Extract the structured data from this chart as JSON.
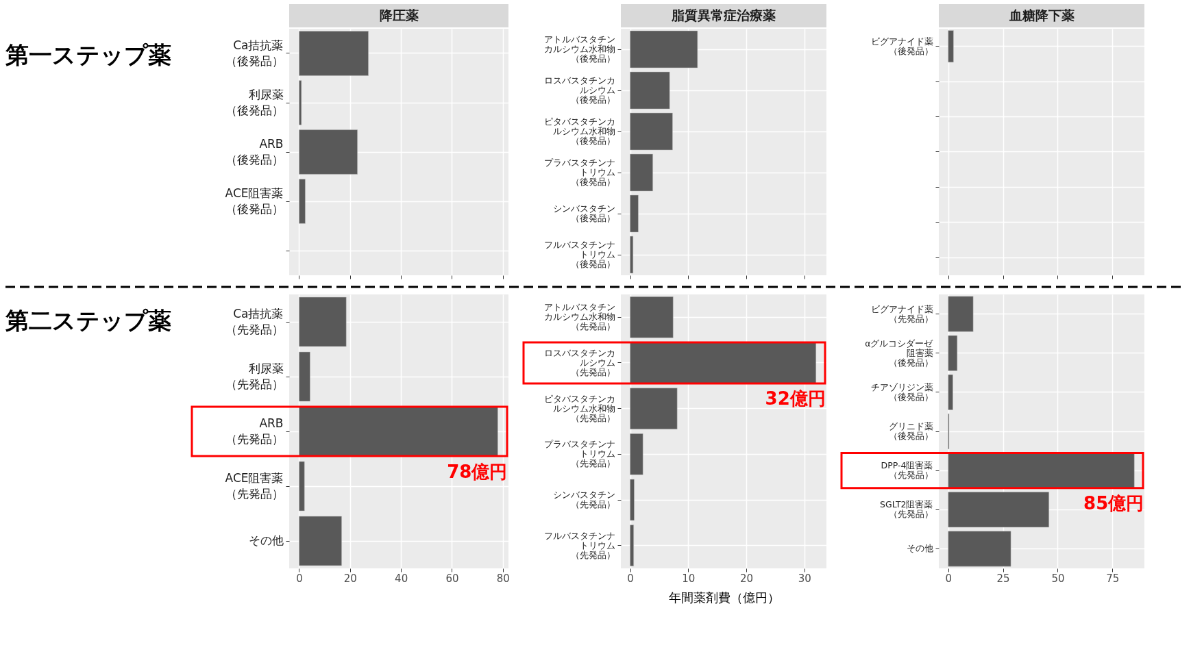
{
  "chart_data": [
    {
      "type": "bar",
      "orientation": "horizontal",
      "title": "降圧薬",
      "categories": [
        "Ca拮抗薬（後発品）",
        "利尿薬（後発品）",
        "ARB（後発品）",
        "ACE阻害薬（後発品）"
      ],
      "values": [
        27.2,
        0.9,
        22.9,
        2.4
      ],
      "color": "#595959",
      "xlim": [
        -3.9,
        82.2
      ],
      "xticks": [
        0,
        20,
        40,
        60,
        80
      ],
      "grid": true,
      "tick_labels": "y",
      "annotations": [
        "第一ステップ薬"
      ]
    },
    {
      "type": "bar",
      "orientation": "horizontal",
      "title": "脂質異常症治療薬",
      "categories": [
        "アトルバスタチンカルシウム水和物（後発品）",
        "ロスバスタチンカルシウム（後発品）",
        "ピタバスタチンカルシウム水和物（後発品）",
        "プラバスタチンナトリウム（後発品）",
        "シンバスタチン（後発品）",
        "フルバスタチンナトリウム（後発品）"
      ],
      "values": [
        11.6,
        6.8,
        7.3,
        3.9,
        1.4,
        0.5
      ],
      "color": "#595959",
      "xlim": [
        -1.6,
        33.8
      ],
      "xticks": [
        0,
        10,
        20,
        30
      ],
      "grid": true,
      "tick_labels": "y"
    },
    {
      "type": "bar",
      "orientation": "horizontal",
      "title": "血糖降下薬",
      "categories": [
        "ビグアナイド薬（後発品）"
      ],
      "values": [
        2.4
      ],
      "color": "#595959",
      "xlim": [
        -4.3,
        89.6
      ],
      "xticks": [
        0,
        25,
        50,
        75
      ],
      "grid": true,
      "tick_labels": "y"
    },
    {
      "type": "bar",
      "orientation": "horizontal",
      "categories": [
        "Ca拮抗薬（先発品）",
        "利尿薬（先発品）",
        "ARB（先発品）",
        "ACE阻害薬（先発品）",
        "その他"
      ],
      "values": [
        18.5,
        4.3,
        78,
        2.1,
        16.7
      ],
      "color": "#595959",
      "xlim": [
        -3.9,
        82.2
      ],
      "xticks": [
        0,
        20,
        40,
        60,
        80
      ],
      "grid": true,
      "annotations": [
        "第二ステップ薬",
        {
          "text": "78億円",
          "x": 78,
          "y": "ARB（先発品）"
        }
      ]
    },
    {
      "type": "bar",
      "orientation": "horizontal",
      "categories": [
        "アトルバスタチンカルシウム水和物（先発品）",
        "ロスバスタチンカルシウム（先発品）",
        "ピタバスタチンカルシウム水和物（先発品）",
        "プラバスタチンナトリウム（先発品）",
        "シンバスタチン（先発品）",
        "フルバスタチンナトリウム（先発品）"
      ],
      "values": [
        7.4,
        32,
        8.1,
        2.2,
        0.7,
        0.6
      ],
      "color": "#595959",
      "xlim": [
        -1.6,
        33.8
      ],
      "xticks": [
        0,
        10,
        20,
        30
      ],
      "grid": true,
      "xlabel": "年間薬剤費（億円）",
      "annotations": [
        {
          "text": "32億円",
          "x": 32,
          "y": "ロスバスタチンカルシウム（先発品）"
        }
      ]
    },
    {
      "type": "bar",
      "orientation": "horizontal",
      "categories": [
        "ビグアナイド薬（先発品）",
        "αグルコシダーゼ阻害薬（後発品）",
        "チアゾリジン薬（後発品）",
        "グリニド薬（後発品）",
        "DPP-4阻害薬（先発品）",
        "SGLT2阻害薬（先発品）",
        "その他"
      ],
      "values": [
        11.4,
        4.1,
        2.1,
        0.4,
        85,
        46.0,
        28.6
      ],
      "color": "#595959",
      "xlim": [
        -4.3,
        89.6
      ],
      "xticks": [
        0,
        25,
        50,
        75
      ],
      "grid": true,
      "annotations": [
        {
          "text": "85億円",
          "x": 85,
          "y": "DPP-4阻害薬（先発品）"
        }
      ]
    }
  ]
}
